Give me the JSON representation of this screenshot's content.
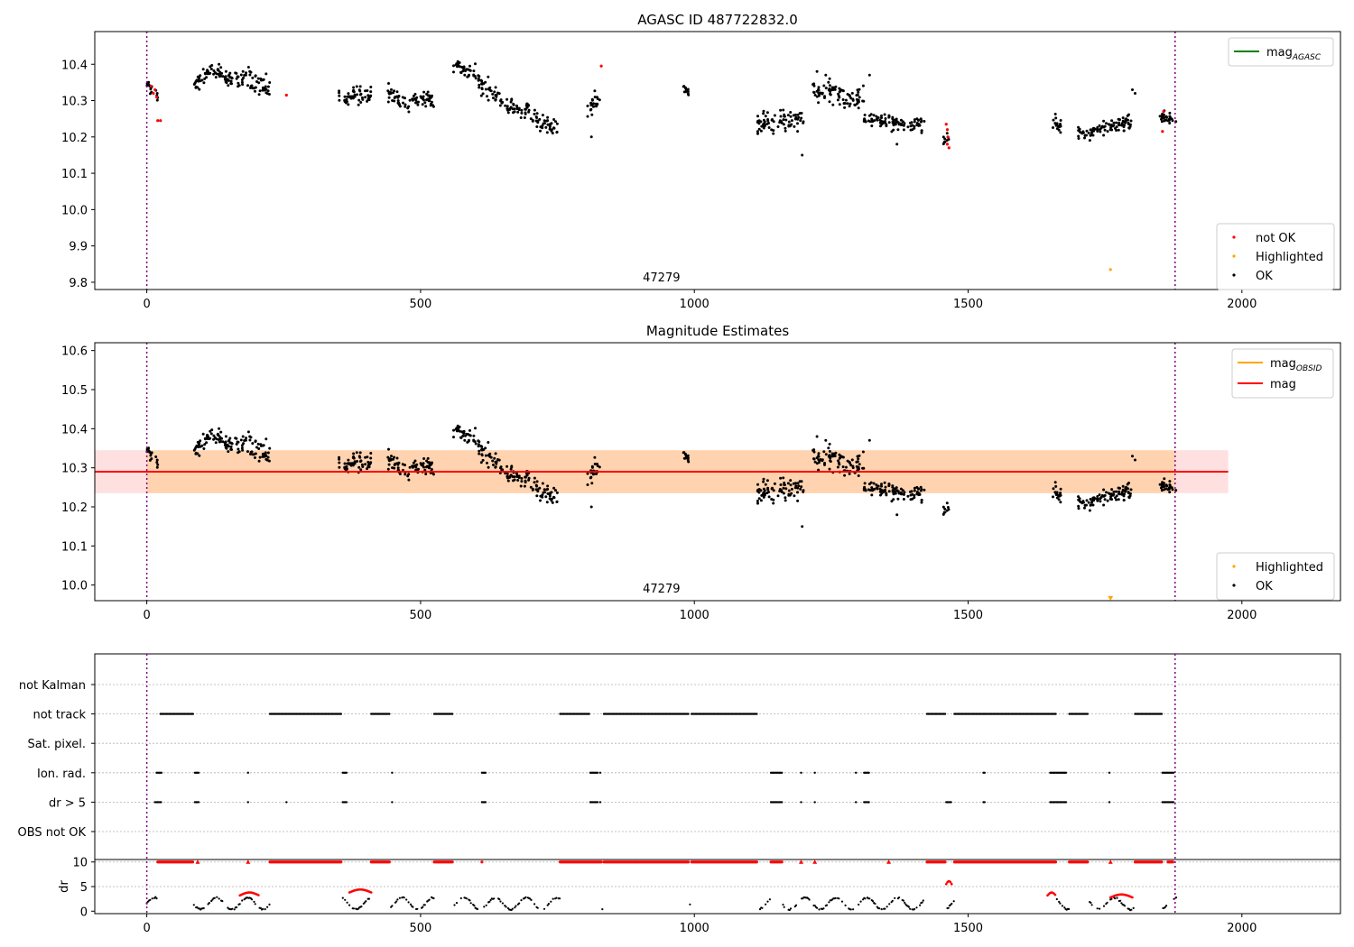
{
  "chart_data": [
    {
      "type": "scatter",
      "title": "AGASC ID 487722832.0",
      "xlim": [
        -95,
        2180
      ],
      "ylim": [
        9.78,
        10.49
      ],
      "xticks": [
        "0",
        "500",
        "1000",
        "1500",
        "2000"
      ],
      "yticks": [
        "9.8",
        "9.9",
        "10.0",
        "10.1",
        "10.2",
        "10.3",
        "10.4"
      ],
      "vlines": [
        0,
        1878
      ],
      "obsid_label": "47279",
      "obsid_label_x": 940,
      "legend_top": {
        "entries": [
          {
            "label": "mag",
            "sub": "AGASC",
            "color": "#008000"
          }
        ]
      },
      "legend_bottom": {
        "entries": [
          {
            "label": "not OK",
            "color": "#ff0000"
          },
          {
            "label": "Highlighted",
            "color": "#ffa500"
          },
          {
            "label": "OK",
            "color": "#000000"
          }
        ]
      },
      "ok_series": {
        "name": "OK",
        "segments": [
          {
            "x": [
              0,
              20
            ],
            "y": [
              10.34,
              10.31
            ],
            "spread": 0.02
          },
          {
            "x": [
              85,
              120
            ],
            "y": [
              10.34,
              10.39
            ],
            "spread": 0.025
          },
          {
            "x": [
              120,
              175
            ],
            "y": [
              10.38,
              10.35
            ],
            "spread": 0.025
          },
          {
            "x": [
              175,
              225
            ],
            "y": [
              10.36,
              10.33
            ],
            "spread": 0.035
          },
          {
            "x": [
              350,
              410
            ],
            "y": [
              10.31,
              10.32
            ],
            "spread": 0.025
          },
          {
            "x": [
              440,
              480
            ],
            "y": [
              10.32,
              10.29
            ],
            "spread": 0.025
          },
          {
            "x": [
              480,
              525
            ],
            "y": [
              10.3,
              10.31
            ],
            "spread": 0.025
          },
          {
            "x": [
              560,
              600
            ],
            "y": [
              10.39,
              10.38
            ],
            "spread": 0.02
          },
          {
            "x": [
              600,
              650
            ],
            "y": [
              10.36,
              10.3
            ],
            "spread": 0.025
          },
          {
            "x": [
              650,
              700
            ],
            "y": [
              10.29,
              10.27
            ],
            "spread": 0.025
          },
          {
            "x": [
              700,
              750
            ],
            "y": [
              10.26,
              10.22
            ],
            "spread": 0.025
          },
          {
            "x": [
              805,
              830
            ],
            "y": [
              10.27,
              10.31
            ],
            "spread": 0.03
          },
          {
            "x": [
              978,
              990
            ],
            "y": [
              10.34,
              10.32
            ],
            "spread": 0.015
          },
          {
            "x": [
              1115,
              1200
            ],
            "y": [
              10.24,
              10.25
            ],
            "spread": 0.03
          },
          {
            "x": [
              1215,
              1270
            ],
            "y": [
              10.32,
              10.33
            ],
            "spread": 0.03
          },
          {
            "x": [
              1270,
              1310
            ],
            "y": [
              10.3,
              10.31
            ],
            "spread": 0.035
          },
          {
            "x": [
              1310,
              1420
            ],
            "y": [
              10.25,
              10.23
            ],
            "spread": 0.02
          },
          {
            "x": [
              1455,
              1465
            ],
            "y": [
              10.19,
              10.2
            ],
            "spread": 0.015
          },
          {
            "x": [
              1650,
              1670
            ],
            "y": [
              10.24,
              10.23
            ],
            "spread": 0.02
          },
          {
            "x": [
              1700,
              1800
            ],
            "y": [
              10.21,
              10.24
            ],
            "spread": 0.02
          },
          {
            "x": [
              1850,
              1880
            ],
            "y": [
              10.26,
              10.24
            ],
            "spread": 0.015
          }
        ],
        "extra": [
          [
            812,
            10.2
          ],
          [
            1197,
            10.15
          ],
          [
            1800,
            10.33
          ],
          [
            1805,
            10.32
          ],
          [
            1224,
            10.38
          ],
          [
            1240,
            10.37
          ],
          [
            1320,
            10.37
          ],
          [
            1370,
            10.18
          ]
        ]
      },
      "notok_points": [
        [
          8,
          10.34
        ],
        [
          12,
          10.32
        ],
        [
          15,
          10.33
        ],
        [
          18,
          10.31
        ],
        [
          20,
          10.245
        ],
        [
          25,
          10.245
        ],
        [
          255,
          10.315
        ],
        [
          830,
          10.395
        ],
        [
          1460,
          10.235
        ],
        [
          1462,
          10.22
        ],
        [
          1463,
          10.2
        ],
        [
          1462,
          10.18
        ],
        [
          1465,
          10.17
        ],
        [
          1855,
          10.215
        ],
        [
          1857,
          10.27
        ]
      ],
      "highlighted_points": [
        [
          1760,
          9.835
        ]
      ]
    },
    {
      "type": "scatter",
      "title": "Magnitude Estimates",
      "xlim": [
        -95,
        2180
      ],
      "ylim": [
        9.96,
        10.62
      ],
      "xticks": [
        "0",
        "500",
        "1000",
        "1500",
        "2000"
      ],
      "yticks": [
        "10.0",
        "10.1",
        "10.2",
        "10.3",
        "10.4",
        "10.5",
        "10.6"
      ],
      "vlines": [
        0,
        1878
      ],
      "obsid_label": "47279",
      "obsid_label_x": 940,
      "mag_line": {
        "name": "mag",
        "value": 10.29,
        "band": [
          10.235,
          10.345
        ],
        "x": [
          -95,
          1975
        ],
        "color": "#ff0000"
      },
      "obsid_line": {
        "name": "mag",
        "sub": "OBSID",
        "value": 10.29,
        "band": [
          10.235,
          10.345
        ],
        "x": [
          0,
          1878
        ],
        "color": "#ffa500"
      },
      "highlighted_points": [
        [
          1760,
          9.965
        ]
      ],
      "legend_top": {
        "entries": [
          {
            "label": "mag",
            "sub": "OBSID",
            "color": "#ffa500"
          },
          {
            "label": "mag",
            "color": "#ff0000"
          }
        ]
      },
      "legend_bottom": {
        "entries": [
          {
            "label": "Highlighted",
            "color": "#ffa500"
          },
          {
            "label": "OK",
            "color": "#000000"
          }
        ]
      }
    },
    {
      "type": "scatter",
      "title": "",
      "xlim": [
        -95,
        2180
      ],
      "xticks": [
        "0",
        "500",
        "1000",
        "1500",
        "2000"
      ],
      "vlines": [
        0,
        1878
      ],
      "flag_rows": [
        "not Kalman",
        "not track",
        "Sat. pixel.",
        "Ion. rad.",
        "dr > 5",
        "OBS not OK"
      ],
      "flags": {
        "not track": [
          [
            25,
            85
          ],
          [
            225,
            355
          ],
          [
            410,
            445
          ],
          [
            525,
            560
          ],
          [
            755,
            810
          ],
          [
            835,
            990
          ],
          [
            995,
            1115
          ],
          [
            1425,
            1460
          ],
          [
            1475,
            1660
          ],
          [
            1685,
            1720
          ],
          [
            1805,
            1855
          ]
        ],
        "Ion. rad.": [
          [
            18,
            28
          ],
          [
            88,
            95
          ],
          [
            185,
            187
          ],
          [
            358,
            365
          ],
          [
            448,
            450
          ],
          [
            612,
            620
          ],
          [
            810,
            825
          ],
          [
            828,
            830
          ],
          [
            1140,
            1160
          ],
          [
            1195,
            1197
          ],
          [
            1220,
            1222
          ],
          [
            1295,
            1297
          ],
          [
            1310,
            1320
          ],
          [
            1528,
            1532
          ],
          [
            1650,
            1680
          ],
          [
            1758,
            1760
          ],
          [
            1855,
            1875
          ]
        ],
        "dr > 5": [
          [
            15,
            28
          ],
          [
            88,
            95
          ],
          [
            185,
            187
          ],
          [
            255,
            257
          ],
          [
            358,
            365
          ],
          [
            448,
            450
          ],
          [
            612,
            620
          ],
          [
            810,
            825
          ],
          [
            828,
            830
          ],
          [
            1140,
            1160
          ],
          [
            1195,
            1197
          ],
          [
            1220,
            1222
          ],
          [
            1295,
            1297
          ],
          [
            1310,
            1320
          ],
          [
            1460,
            1470
          ],
          [
            1528,
            1532
          ],
          [
            1650,
            1680
          ],
          [
            1758,
            1760
          ],
          [
            1855,
            1875
          ]
        ]
      },
      "dr": {
        "ylabel": "dr",
        "ylim": [
          -0.5,
          10.5
        ],
        "yticks": [
          "0",
          "5",
          "10"
        ],
        "capped_ranges": [
          [
            20,
            85
          ],
          [
            225,
            355
          ],
          [
            410,
            445
          ],
          [
            525,
            560
          ],
          [
            612,
            614
          ],
          [
            755,
            830
          ],
          [
            835,
            990
          ],
          [
            995,
            1115
          ],
          [
            1140,
            1160
          ],
          [
            1425,
            1460
          ],
          [
            1475,
            1660
          ],
          [
            1685,
            1720
          ],
          [
            1805,
            1855
          ],
          [
            1865,
            1875
          ]
        ],
        "capped_points": [
          [
            93,
            10
          ],
          [
            185,
            10
          ],
          [
            1195,
            10
          ],
          [
            1220,
            10
          ],
          [
            1355,
            10
          ],
          [
            1760,
            10
          ]
        ]
      }
    }
  ]
}
